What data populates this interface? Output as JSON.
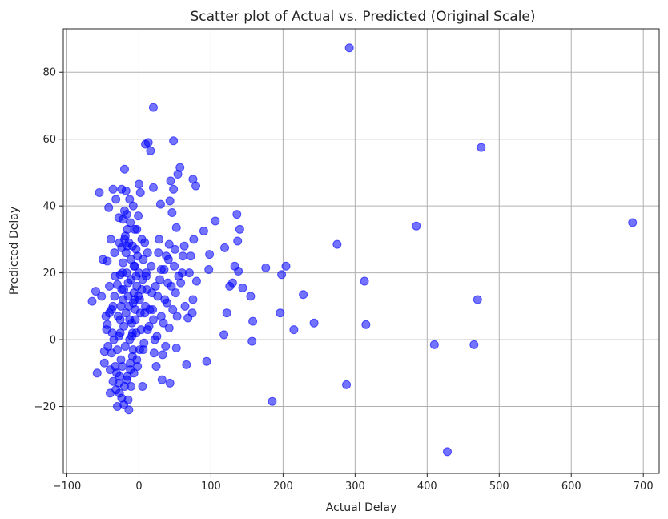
{
  "chart_data": {
    "type": "scatter",
    "title": "Scatter plot of Actual vs. Predicted (Original Scale)",
    "xlabel": "Actual Delay",
    "ylabel": "Predicted Delay",
    "xlim": [
      -105,
      722
    ],
    "ylim": [
      -40,
      93
    ],
    "xticks": [
      -100,
      0,
      100,
      200,
      300,
      400,
      500,
      600,
      700
    ],
    "xtick_labels": [
      "−100",
      "0",
      "100",
      "200",
      "300",
      "400",
      "500",
      "600",
      "700"
    ],
    "yticks": [
      -20,
      0,
      20,
      40,
      60,
      80
    ],
    "ytick_labels": [
      "−20",
      "0",
      "20",
      "40",
      "60",
      "80"
    ],
    "grid": true,
    "marker_color": "#0000ff",
    "marker_alpha": 0.55,
    "points": [
      [
        292,
        87.3
      ],
      [
        20,
        69.5
      ],
      [
        475,
        57.5
      ],
      [
        685,
        35
      ],
      [
        385,
        34
      ],
      [
        275,
        28.5
      ],
      [
        428,
        -33.5
      ],
      [
        288,
        -13.5
      ],
      [
        185,
        -18.5
      ],
      [
        315,
        4.5
      ],
      [
        313,
        17.5
      ],
      [
        410,
        -1.5
      ],
      [
        465,
        -1.5
      ],
      [
        470,
        12
      ],
      [
        243,
        5
      ],
      [
        228,
        13.5
      ],
      [
        215,
        3
      ],
      [
        196,
        8
      ],
      [
        198,
        19.5
      ],
      [
        204,
        22
      ],
      [
        176,
        21.5
      ],
      [
        158,
        5.5
      ],
      [
        157,
        -0.5
      ],
      [
        155,
        13
      ],
      [
        144,
        15.5
      ],
      [
        140,
        33
      ],
      [
        137,
        29.5
      ],
      [
        136,
        37.5
      ],
      [
        138,
        20.5
      ],
      [
        133,
        22
      ],
      [
        130,
        17
      ],
      [
        126,
        16
      ],
      [
        122,
        8
      ],
      [
        118,
        1.5
      ],
      [
        119,
        27.5
      ],
      [
        106,
        35.5
      ],
      [
        98,
        25.5
      ],
      [
        97,
        21
      ],
      [
        94,
        -6.5
      ],
      [
        90,
        32.5
      ],
      [
        79,
        46
      ],
      [
        75,
        48
      ],
      [
        76,
        30
      ],
      [
        75,
        12
      ],
      [
        74,
        8
      ],
      [
        80,
        17.5
      ],
      [
        72,
        25
      ],
      [
        70,
        20
      ],
      [
        68,
        6.5
      ],
      [
        66,
        -7.5
      ],
      [
        63,
        28
      ],
      [
        60,
        20
      ],
      [
        57,
        51.5
      ],
      [
        54,
        49.5
      ],
      [
        52,
        33.5
      ],
      [
        50,
        27
      ],
      [
        48,
        45
      ],
      [
        48,
        59.5
      ],
      [
        46,
        38
      ],
      [
        44,
        47.5
      ],
      [
        43,
        41.5
      ],
      [
        42,
        28.5
      ],
      [
        40,
        17
      ],
      [
        42,
        3.5
      ],
      [
        43,
        -13
      ],
      [
        52,
        -2.5
      ],
      [
        38,
        25
      ],
      [
        36,
        12
      ],
      [
        34,
        5
      ],
      [
        33,
        -4.5
      ],
      [
        32,
        -12
      ],
      [
        31,
        21
      ],
      [
        30,
        40.5
      ],
      [
        28,
        30
      ],
      [
        26,
        13
      ],
      [
        24,
        -8
      ],
      [
        22,
        0
      ],
      [
        20,
        45.5
      ],
      [
        16,
        56.5
      ],
      [
        13,
        59
      ],
      [
        9,
        58.5
      ],
      [
        12,
        26
      ],
      [
        10,
        20
      ],
      [
        8,
        8
      ],
      [
        6,
        -3
      ],
      [
        5,
        -14
      ],
      [
        4,
        30
      ],
      [
        2,
        44
      ],
      [
        0,
        46.5
      ],
      [
        -1,
        37
      ],
      [
        -3,
        33
      ],
      [
        -6,
        22
      ],
      [
        -8,
        11
      ],
      [
        -10,
        1
      ],
      [
        -12,
        -9
      ],
      [
        -14,
        -21
      ],
      [
        -16,
        28
      ],
      [
        -18,
        44.5
      ],
      [
        -20,
        51
      ],
      [
        -22,
        36
      ],
      [
        -24,
        15
      ],
      [
        -26,
        2
      ],
      [
        -28,
        -13
      ],
      [
        -30,
        -20
      ],
      [
        -32,
        42
      ],
      [
        -34,
        26
      ],
      [
        -36,
        10
      ],
      [
        -38,
        -4
      ],
      [
        -40,
        -16
      ],
      [
        -42,
        39.5
      ],
      [
        -44,
        23.5
      ],
      [
        -46,
        7
      ],
      [
        -48,
        -7
      ],
      [
        -52,
        13
      ],
      [
        -55,
        44
      ],
      [
        -58,
        -10
      ],
      [
        -60,
        14.5
      ],
      [
        -65,
        11.5
      ],
      [
        -50,
        24
      ],
      [
        -45,
        3
      ],
      [
        -43,
        -2
      ],
      [
        -41,
        16
      ],
      [
        -39,
        30
      ],
      [
        -35,
        0
      ],
      [
        -33,
        19
      ],
      [
        -31,
        -10
      ],
      [
        -29,
        7
      ],
      [
        -27,
        29
      ],
      [
        -25,
        -6
      ],
      [
        -23,
        20
      ],
      [
        -21,
        4
      ],
      [
        -19,
        31
      ],
      [
        -17,
        -12
      ],
      [
        -15,
        17
      ],
      [
        -13,
        0
      ],
      [
        -11,
        24
      ],
      [
        -9,
        -5
      ],
      [
        -7,
        14
      ],
      [
        -5,
        6
      ],
      [
        -4,
        27
      ],
      [
        -2,
        -8
      ],
      [
        1,
        12
      ],
      [
        3,
        3
      ],
      [
        5,
        18
      ],
      [
        7,
        -1
      ],
      [
        9,
        10
      ],
      [
        11,
        15
      ],
      [
        14,
        4
      ],
      [
        17,
        22
      ],
      [
        19,
        9
      ],
      [
        21,
        -4
      ],
      [
        23,
        16
      ],
      [
        25,
        1
      ],
      [
        27,
        26
      ],
      [
        29,
        18
      ],
      [
        31,
        7
      ],
      [
        35,
        21
      ],
      [
        37,
        -2
      ],
      [
        39,
        11
      ],
      [
        41,
        24
      ],
      [
        45,
        16
      ],
      [
        47,
        9
      ],
      [
        49,
        22
      ],
      [
        51,
        14
      ],
      [
        53,
        7
      ],
      [
        55,
        19
      ],
      [
        58,
        17
      ],
      [
        61,
        25
      ],
      [
        64,
        10
      ],
      [
        -24,
        45
      ],
      [
        -28,
        36.5
      ],
      [
        -36,
        45
      ],
      [
        -20,
        38.5
      ],
      [
        -16,
        33
      ],
      [
        -12,
        35
      ],
      [
        -8,
        40
      ],
      [
        -14,
        29
      ],
      [
        -18,
        26
      ],
      [
        -22,
        23
      ],
      [
        -26,
        19.5
      ],
      [
        -30,
        16.5
      ],
      [
        -34,
        13
      ],
      [
        -38,
        9
      ],
      [
        -44,
        4.5
      ],
      [
        -48,
        -3.5
      ],
      [
        -40,
        -9
      ],
      [
        -36,
        -12.5
      ],
      [
        -32,
        -15
      ],
      [
        -24,
        -17.5
      ],
      [
        -20,
        -14
      ],
      [
        -16,
        -11
      ],
      [
        -12,
        -7
      ],
      [
        -8,
        -3
      ],
      [
        -4,
        2
      ],
      [
        -18,
        8
      ],
      [
        -22,
        12
      ],
      [
        -26,
        6
      ],
      [
        -28,
        1
      ],
      [
        -30,
        -3
      ],
      [
        -25,
        10
      ],
      [
        -21,
        15
      ],
      [
        -17,
        20
      ],
      [
        -13,
        6
      ],
      [
        -9,
        2
      ],
      [
        -5,
        9
      ],
      [
        -15,
        13
      ],
      [
        -11,
        18
      ],
      [
        -7,
        22
      ],
      [
        -3,
        16
      ],
      [
        -19,
        -2
      ],
      [
        -23,
        -8
      ],
      [
        -27,
        -11
      ],
      [
        -14,
        10
      ],
      [
        -10,
        5
      ],
      [
        -6,
        12
      ],
      [
        -2,
        25
      ],
      [
        0,
        20
      ],
      [
        -24,
        27.5
      ],
      [
        -20,
        30
      ],
      [
        -17,
        37.5
      ],
      [
        -13,
        42
      ],
      [
        -9,
        28
      ],
      [
        -6,
        33
      ],
      [
        -4,
        19
      ],
      [
        -1,
        13
      ],
      [
        2,
        8
      ],
      [
        4,
        15
      ],
      [
        6,
        24
      ],
      [
        8,
        29
      ],
      [
        10,
        19
      ],
      [
        12,
        3
      ],
      [
        15,
        9
      ],
      [
        18,
        14
      ],
      [
        20,
        6
      ],
      [
        -21,
        -19.5
      ],
      [
        -27,
        -16
      ],
      [
        -33,
        -8
      ],
      [
        -37,
        2
      ],
      [
        -41,
        8
      ],
      [
        -15,
        -18
      ],
      [
        -11,
        -14
      ],
      [
        -7,
        -10
      ],
      [
        -3,
        -6
      ],
      [
        1,
        -3
      ]
    ]
  }
}
